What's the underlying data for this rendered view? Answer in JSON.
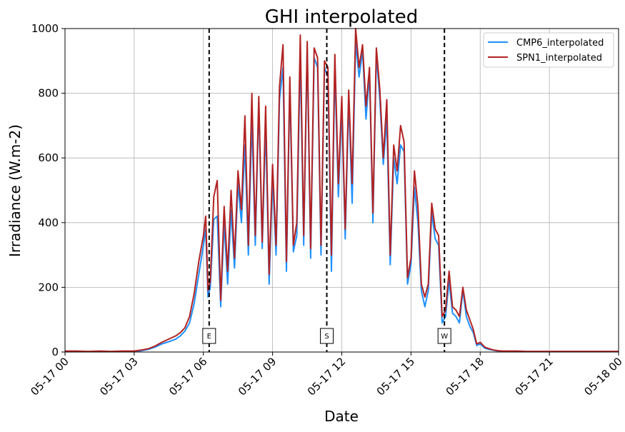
{
  "chart_data": {
    "type": "line",
    "title": "GHI interpolated",
    "xlabel": "Date",
    "ylabel": "Irradiance (W.m-2)",
    "xlim": [
      "05-17 00:00",
      "05-18 00:00"
    ],
    "ylim": [
      0,
      1000
    ],
    "grid": true,
    "legend_position": "top-right",
    "x_ticks": [
      "05-17 00",
      "05-17 03",
      "05-17 06",
      "05-17 09",
      "05-17 12",
      "05-17 15",
      "05-17 18",
      "05-17 21",
      "05-18 00"
    ],
    "y_ticks": [
      0,
      200,
      400,
      600,
      800,
      1000
    ],
    "x_tick_hours": [
      0,
      3,
      6,
      9,
      12,
      15,
      18,
      21,
      24
    ],
    "series": [
      {
        "name": "CMP6_interpolated",
        "color": "#1e90ff",
        "x_hours": [
          0,
          0.5,
          1,
          1.5,
          2,
          2.5,
          3,
          3.3,
          3.6,
          3.9,
          4.2,
          4.5,
          4.8,
          5.0,
          5.2,
          5.4,
          5.6,
          5.8,
          6.0,
          6.1,
          6.2,
          6.3,
          6.45,
          6.6,
          6.75,
          6.9,
          7.05,
          7.2,
          7.35,
          7.5,
          7.65,
          7.8,
          7.95,
          8.1,
          8.25,
          8.4,
          8.55,
          8.7,
          8.85,
          9.0,
          9.15,
          9.3,
          9.45,
          9.6,
          9.75,
          9.9,
          10.05,
          10.2,
          10.35,
          10.5,
          10.65,
          10.8,
          10.95,
          11.1,
          11.25,
          11.4,
          11.55,
          11.7,
          11.85,
          12.0,
          12.15,
          12.3,
          12.45,
          12.6,
          12.75,
          12.9,
          13.05,
          13.2,
          13.35,
          13.5,
          13.65,
          13.8,
          13.95,
          14.1,
          14.25,
          14.4,
          14.55,
          14.7,
          14.85,
          15.0,
          15.15,
          15.3,
          15.45,
          15.6,
          15.75,
          15.9,
          16.05,
          16.2,
          16.35,
          16.5,
          16.65,
          16.8,
          16.95,
          17.1,
          17.25,
          17.4,
          17.55,
          17.7,
          17.85,
          18.0,
          18.2,
          18.4,
          18.6,
          18.8,
          19.0,
          19.3,
          19.6,
          20,
          21,
          22,
          23,
          24
        ],
        "values": [
          2,
          2,
          1,
          2,
          1,
          2,
          2,
          4,
          8,
          15,
          25,
          32,
          40,
          50,
          65,
          90,
          150,
          240,
          330,
          380,
          170,
          200,
          410,
          420,
          140,
          400,
          210,
          440,
          260,
          520,
          400,
          640,
          300,
          720,
          330,
          770,
          320,
          700,
          210,
          540,
          300,
          780,
          880,
          250,
          820,
          310,
          360,
          920,
          330,
          940,
          290,
          910,
          880,
          300,
          880,
          850,
          250,
          880,
          480,
          760,
          350,
          780,
          460,
          960,
          850,
          930,
          720,
          860,
          400,
          920,
          780,
          580,
          720,
          270,
          600,
          520,
          640,
          620,
          210,
          270,
          510,
          400,
          190,
          140,
          190,
          430,
          350,
          330,
          90,
          110,
          220,
          120,
          110,
          90,
          190,
          110,
          80,
          60,
          20,
          25,
          12,
          8,
          5,
          3,
          2,
          2,
          2,
          1,
          1,
          1,
          1,
          1
        ],
        "labels": []
      },
      {
        "name": "SPN1_interpolated",
        "color": "#b22222",
        "x_hours": [
          0,
          0.5,
          1,
          1.5,
          2,
          2.5,
          3,
          3.3,
          3.6,
          3.9,
          4.2,
          4.5,
          4.8,
          5.0,
          5.2,
          5.4,
          5.6,
          5.8,
          6.0,
          6.1,
          6.2,
          6.3,
          6.45,
          6.6,
          6.75,
          6.9,
          7.05,
          7.2,
          7.35,
          7.5,
          7.65,
          7.8,
          7.95,
          8.1,
          8.25,
          8.4,
          8.55,
          8.7,
          8.85,
          9.0,
          9.15,
          9.3,
          9.45,
          9.6,
          9.75,
          9.9,
          10.05,
          10.2,
          10.35,
          10.5,
          10.65,
          10.8,
          10.95,
          11.1,
          11.25,
          11.4,
          11.55,
          11.7,
          11.85,
          12.0,
          12.15,
          12.3,
          12.45,
          12.6,
          12.75,
          12.9,
          13.05,
          13.2,
          13.35,
          13.5,
          13.65,
          13.8,
          13.95,
          14.1,
          14.25,
          14.4,
          14.55,
          14.7,
          14.85,
          15.0,
          15.15,
          15.3,
          15.45,
          15.6,
          15.75,
          15.9,
          16.05,
          16.2,
          16.35,
          16.5,
          16.65,
          16.8,
          16.95,
          17.1,
          17.25,
          17.4,
          17.55,
          17.7,
          17.85,
          18.0,
          18.2,
          18.4,
          18.6,
          18.8,
          19.0,
          19.3,
          19.6,
          20,
          21,
          22,
          23,
          24
        ],
        "values": [
          3,
          3,
          2,
          3,
          2,
          3,
          3,
          6,
          10,
          18,
          30,
          40,
          50,
          60,
          75,
          110,
          180,
          280,
          360,
          420,
          190,
          220,
          480,
          530,
          160,
          450,
          250,
          500,
          290,
          560,
          440,
          730,
          330,
          800,
          360,
          790,
          340,
          760,
          240,
          580,
          330,
          820,
          950,
          280,
          850,
          330,
          400,
          980,
          360,
          960,
          320,
          940,
          910,
          330,
          900,
          880,
          300,
          920,
          520,
          790,
          380,
          810,
          520,
          1000,
          880,
          950,
          760,
          880,
          430,
          940,
          810,
          600,
          780,
          300,
          640,
          560,
          700,
          650,
          230,
          290,
          560,
          450,
          210,
          170,
          210,
          460,
          380,
          360,
          110,
          130,
          250,
          140,
          130,
          110,
          200,
          130,
          100,
          70,
          25,
          30,
          15,
          10,
          6,
          4,
          3,
          3,
          3,
          2,
          2,
          2,
          2,
          2
        ],
        "labels": []
      }
    ],
    "markers": [
      {
        "label": "E",
        "x_hour": 6.25
      },
      {
        "label": "S",
        "x_hour": 11.35
      },
      {
        "label": "W",
        "x_hour": 16.45
      }
    ]
  }
}
